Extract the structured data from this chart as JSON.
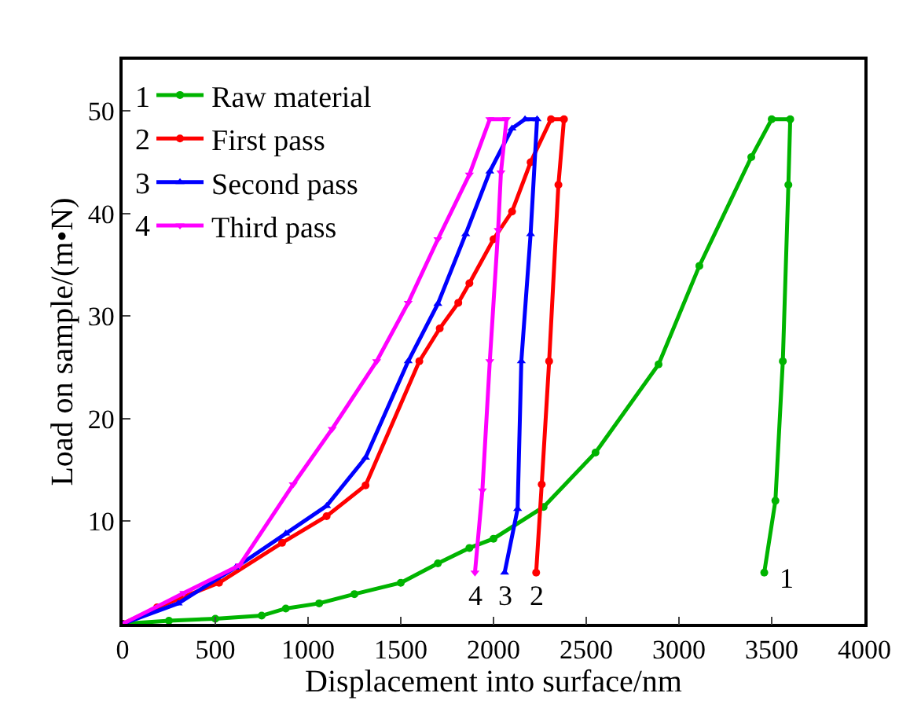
{
  "chart_data": {
    "type": "line",
    "xlabel": "Displacement into surface/nm",
    "ylabel": "Load on sample/(m•N)",
    "xlim": [
      0,
      4000
    ],
    "ylim": [
      0,
      55
    ],
    "xticks": [
      0,
      500,
      1000,
      1500,
      2000,
      2500,
      3000,
      3500,
      4000
    ],
    "yticks": [
      {
        "value": 0,
        "label": null
      },
      10,
      20,
      30,
      40,
      50
    ],
    "legend": "top left",
    "line_style": "solid",
    "series": [
      {
        "name": "Raw material",
        "color": "#00b400",
        "marker": "circle",
        "x": [
          0,
          250,
          500,
          750,
          880,
          1060,
          1250,
          1500,
          1700,
          1870,
          2000,
          2270,
          2550,
          2890,
          3110,
          3390,
          3500,
          3600,
          3590,
          3560,
          3520,
          3460
        ],
        "values": [
          0,
          0.3,
          0.5,
          0.8,
          1.5,
          2.0,
          2.9,
          4.0,
          5.9,
          7.4,
          8.3,
          11.4,
          16.7,
          25.3,
          34.9,
          45.5,
          49.2,
          49.2,
          42.8,
          25.6,
          12,
          5.0
        ]
      },
      {
        "name": "First pass",
        "color": "#ff0000",
        "marker": "circle",
        "x": [
          0,
          186,
          520,
          860,
          1100,
          1310,
          1600,
          1710,
          1810,
          1870,
          2000,
          2100,
          2200,
          2310,
          2380,
          2350,
          2300,
          2260,
          2230
        ],
        "values": [
          0,
          1.6,
          4.0,
          7.9,
          10.5,
          13.5,
          25.6,
          28.8,
          31.3,
          33.2,
          37.5,
          40.2,
          45,
          49.2,
          49.2,
          42.8,
          25.6,
          13.6,
          5.0
        ]
      },
      {
        "name": "Second pass",
        "color": "#0000ff",
        "marker": "triangle",
        "x": [
          0,
          300,
          610,
          880,
          1100,
          1310,
          1540,
          1700,
          1850,
          1980,
          2100,
          2170,
          2235,
          2200,
          2150,
          2130,
          2060
        ],
        "values": [
          0,
          2.0,
          5.5,
          8.8,
          11.5,
          16.2,
          25.6,
          31.2,
          38,
          44.1,
          48.3,
          49.2,
          49.2,
          38,
          25.6,
          11.2,
          5.0
        ]
      },
      {
        "name": "Third pass",
        "color": "#ff00ff",
        "marker": "triangle-down",
        "x": [
          0,
          330,
          630,
          920,
          1130,
          1370,
          1540,
          1700,
          1870,
          1980,
          2070,
          2040,
          2025,
          1980,
          1940,
          1900
        ],
        "values": [
          0,
          3.0,
          5.7,
          13.6,
          19,
          25.6,
          31.3,
          37.5,
          43.8,
          49.2,
          49.2,
          44,
          38.4,
          25.6,
          13,
          5.0
        ]
      }
    ],
    "annotations": [
      "1",
      "2",
      "3",
      "4",
      "1",
      "2",
      "3",
      "4"
    ]
  }
}
